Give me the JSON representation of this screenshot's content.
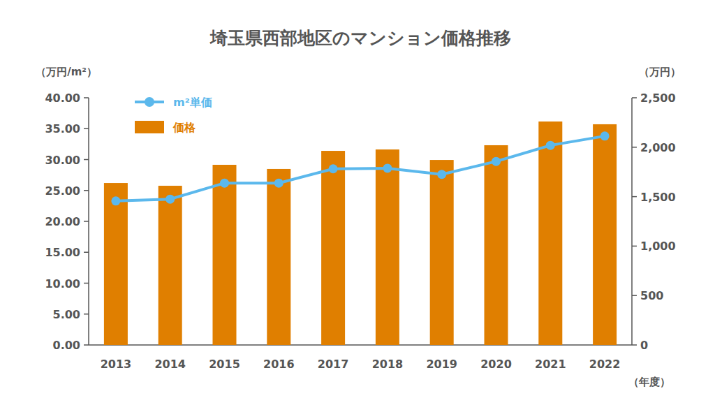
{
  "chart_data": {
    "type": "bar",
    "title": "埼玉県西部地区のマンション価格推移",
    "y_label": "（万円/m²）",
    "y2_label": "（万円）",
    "x_label": "（年度）",
    "categories": [
      "2013",
      "2014",
      "2015",
      "2016",
      "2017",
      "2018",
      "2019",
      "2020",
      "2021",
      "2022"
    ],
    "series": [
      {
        "name": "m²単価",
        "type": "line",
        "color": "#5bb8ec",
        "marker": "circle",
        "values": [
          23.3,
          23.6,
          26.2,
          26.2,
          28.5,
          28.6,
          27.6,
          29.7,
          32.3,
          33.8
        ]
      },
      {
        "name": "価格",
        "type": "bar",
        "axis": "y2",
        "color": "#e07f00",
        "values": [
          1638,
          1610,
          1822,
          1780,
          1963,
          1977,
          1871,
          2020,
          2260,
          2232
        ]
      }
    ],
    "ylim": [
      0,
      40
    ],
    "yticks": [
      {
        "value": 0,
        "label": "0.00"
      },
      {
        "value": 5,
        "label": "5.00"
      },
      {
        "value": 10,
        "label": "10.00"
      },
      {
        "value": 15,
        "label": "15.00"
      },
      {
        "value": 20,
        "label": "20.00"
      },
      {
        "value": 25,
        "label": "25.00"
      },
      {
        "value": 30,
        "label": "30.00"
      },
      {
        "value": 35,
        "label": "35.00"
      },
      {
        "value": 40,
        "label": "40.00"
      }
    ],
    "y2lim": [
      0,
      2500
    ],
    "y2ticks": [
      0,
      500,
      {
        "value": 1000,
        "label": "1,000"
      },
      {
        "value": 1500,
        "label": "1,500"
      },
      {
        "value": 2000,
        "label": "2,000"
      },
      {
        "value": 2500,
        "label": "2,500"
      }
    ],
    "grid": false,
    "legend": "top-left"
  }
}
